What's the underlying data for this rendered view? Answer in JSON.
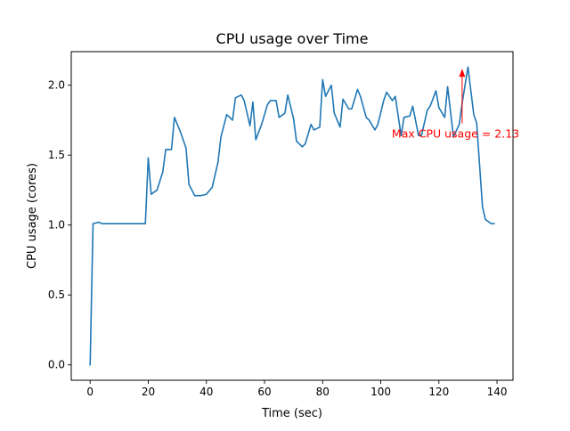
{
  "chart_data": {
    "type": "line",
    "title": "CPU usage over Time",
    "xlabel": "Time (sec)",
    "ylabel": "CPU usage (cores)",
    "xlim": [
      -6.5,
      145.5
    ],
    "ylim": [
      -0.11,
      2.24
    ],
    "xticks": [
      0,
      20,
      40,
      60,
      80,
      100,
      120,
      140
    ],
    "xtick_labels": [
      "0",
      "20",
      "40",
      "60",
      "80",
      "100",
      "120",
      "140"
    ],
    "yticks": [
      0.0,
      0.5,
      1.0,
      1.5,
      2.0
    ],
    "ytick_labels": [
      "0.0",
      "0.5",
      "1.0",
      "1.5",
      "2.0"
    ],
    "grid": false,
    "series": [
      {
        "color": "#1f77b4",
        "x": [
          0,
          1,
          3,
          4,
          6,
          8,
          10,
          12,
          14,
          16,
          18,
          19,
          20,
          21,
          23,
          25,
          26,
          28,
          29,
          31,
          33,
          34,
          36,
          38,
          40,
          42,
          44,
          45,
          47,
          49,
          50,
          52,
          53,
          55,
          56,
          57,
          59,
          61,
          62,
          64,
          65,
          67,
          68,
          70,
          71,
          73,
          74,
          76,
          77,
          79,
          80,
          81,
          83,
          84,
          86,
          87,
          89,
          90,
          92,
          93,
          95,
          96,
          98,
          99,
          101,
          102,
          104,
          105,
          107,
          108,
          110,
          111,
          113,
          114,
          116,
          117,
          119,
          120,
          122,
          123,
          125,
          127,
          128,
          130,
          132,
          133,
          135,
          136,
          138,
          139
        ],
        "y": [
          0.0,
          1.01,
          1.02,
          1.01,
          1.01,
          1.01,
          1.01,
          1.01,
          1.01,
          1.01,
          1.01,
          1.01,
          1.48,
          1.22,
          1.25,
          1.38,
          1.54,
          1.54,
          1.77,
          1.67,
          1.55,
          1.29,
          1.21,
          1.21,
          1.22,
          1.27,
          1.45,
          1.63,
          1.79,
          1.75,
          1.91,
          1.93,
          1.89,
          1.71,
          1.88,
          1.61,
          1.72,
          1.86,
          1.89,
          1.89,
          1.77,
          1.8,
          1.93,
          1.76,
          1.6,
          1.56,
          1.58,
          1.72,
          1.68,
          1.7,
          2.04,
          1.92,
          2.0,
          1.8,
          1.7,
          1.9,
          1.83,
          1.83,
          1.97,
          1.92,
          1.77,
          1.75,
          1.68,
          1.72,
          1.89,
          1.95,
          1.89,
          1.92,
          1.64,
          1.77,
          1.78,
          1.85,
          1.64,
          1.64,
          1.82,
          1.85,
          1.96,
          1.84,
          1.77,
          1.99,
          1.63,
          1.72,
          1.87,
          2.13,
          1.79,
          1.73,
          1.13,
          1.04,
          1.01,
          1.01
        ]
      }
    ],
    "annotations": [
      {
        "text": "Max CPU usage = 2.13",
        "color": "#ff0000",
        "text_x": 103.8,
        "text_y": 1.65,
        "arrow_to_x": 128,
        "arrow_to_y": 2.13
      }
    ]
  }
}
